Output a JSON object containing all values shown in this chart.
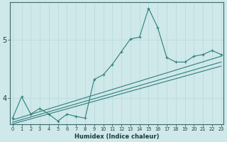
{
  "xlabel": "Humidex (Indice chaleur)",
  "bg_color": "#cfe8ea",
  "line_color": "#2d7f7a",
  "grid_color": "#b8d8dc",
  "x_ticks": [
    0,
    1,
    2,
    3,
    4,
    5,
    6,
    7,
    8,
    9,
    10,
    11,
    12,
    13,
    14,
    15,
    16,
    17,
    18,
    19,
    20,
    21,
    22,
    23
  ],
  "y_ticks": [
    4,
    5
  ],
  "ylim": [
    3.55,
    5.65
  ],
  "xlim": [
    -0.3,
    23.3
  ],
  "trend_lines": [
    {
      "x0": 0,
      "y0": 3.62,
      "x1": 23,
      "y1": 4.72
    },
    {
      "x0": 0,
      "y0": 3.58,
      "x1": 23,
      "y1": 4.62
    },
    {
      "x0": 0,
      "y0": 3.55,
      "x1": 23,
      "y1": 4.55
    }
  ],
  "zigzag_x": [
    0,
    1,
    2,
    3,
    4,
    5,
    6,
    7,
    8,
    9,
    10,
    11,
    12,
    13,
    14,
    15,
    16,
    17,
    18,
    19,
    20,
    21,
    22,
    23
  ],
  "zigzag_y": [
    3.65,
    4.02,
    3.72,
    3.82,
    3.72,
    3.6,
    3.72,
    3.68,
    3.65,
    4.32,
    4.4,
    4.58,
    4.8,
    5.02,
    5.05,
    5.55,
    5.22,
    4.7,
    4.62,
    4.62,
    4.72,
    4.75,
    4.82,
    4.75
  ]
}
